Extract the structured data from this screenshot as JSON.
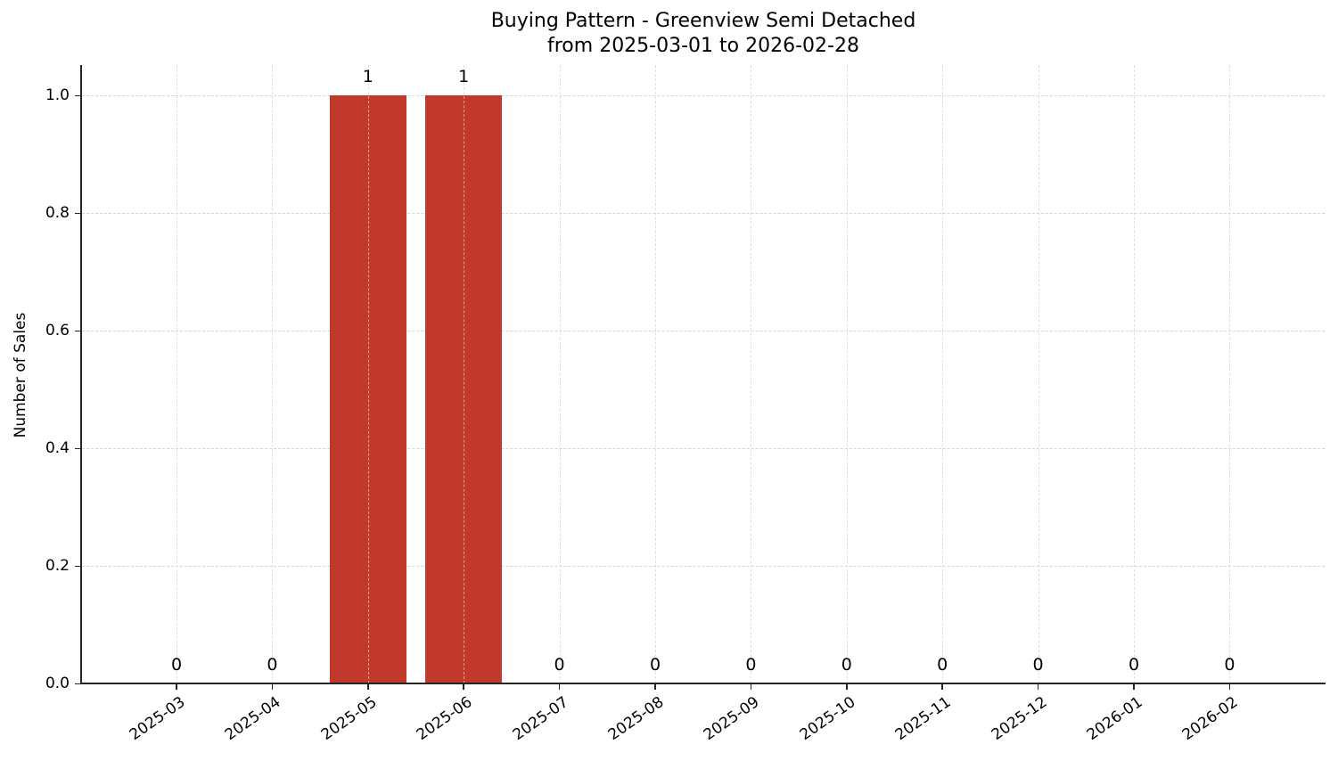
{
  "chart_data": {
    "type": "bar",
    "title": "Buying Pattern - Greenview Semi Detached",
    "subtitle": "from 2025-03-01 to 2026-02-28",
    "xlabel": "",
    "ylabel": "Number of Sales",
    "categories": [
      "2025-03",
      "2025-04",
      "2025-05",
      "2025-06",
      "2025-07",
      "2025-08",
      "2025-09",
      "2025-10",
      "2025-11",
      "2025-12",
      "2026-01",
      "2026-02"
    ],
    "values": [
      0,
      0,
      1,
      1,
      0,
      0,
      0,
      0,
      0,
      0,
      0,
      0
    ],
    "data_labels": [
      "0",
      "0",
      "1",
      "1",
      "0",
      "0",
      "0",
      "0",
      "0",
      "0",
      "0",
      "0"
    ],
    "ylim": [
      0,
      1.05
    ],
    "yticks": [
      "0.0",
      "0.2",
      "0.4",
      "0.6",
      "0.8",
      "1.0"
    ],
    "grid": true,
    "legend": null,
    "bar_color": "#c0392b"
  }
}
